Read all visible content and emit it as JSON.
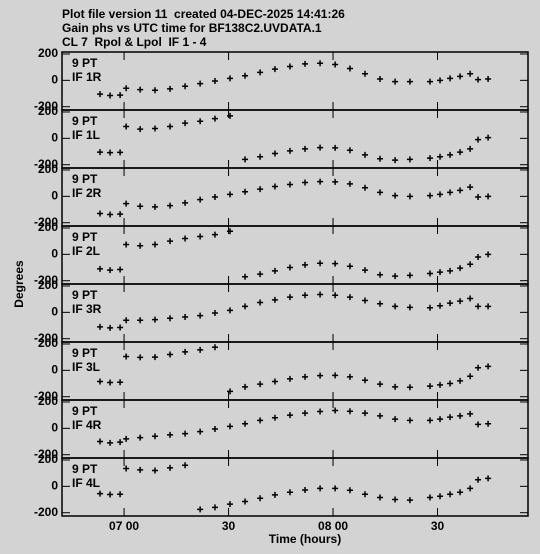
{
  "chart_data": {
    "type": "scatter",
    "title": "Plot file version 11  created 04-DEC-2025 14:41:26",
    "subtitle": "Gain phs vs UTC time for BF138C2.UVDATA.1",
    "subtitle2": "CL 7  Rpol & Lpol  IF 1 - 4",
    "y_label": "Degrees",
    "x_label": "Time (hours)",
    "panel_note": "9 PT",
    "xlim": [
      6.703,
      8.933
    ],
    "xticks": [
      {
        "value": 7.0,
        "label": "07 00"
      },
      {
        "value": 7.5,
        "label": "30"
      },
      {
        "value": 8.0,
        "label": "08 00"
      },
      {
        "value": 8.5,
        "label": "30"
      }
    ],
    "ylim": [
      -225,
      215
    ],
    "yticks": [
      -200,
      0,
      200
    ],
    "color": "#000000",
    "x": [
      6.885,
      6.933,
      6.981,
      7.01,
      7.077,
      7.148,
      7.22,
      7.292,
      7.364,
      7.435,
      7.507,
      7.579,
      7.651,
      7.722,
      7.794,
      7.866,
      7.938,
      8.01,
      8.081,
      8.153,
      8.225,
      8.297,
      8.368,
      8.464,
      8.512,
      8.56,
      8.608,
      8.656,
      8.694,
      8.742
    ],
    "series": [
      {
        "name": "IF 1R",
        "values": [
          -105,
          -115,
          -112,
          -60,
          -70,
          -75,
          -65,
          -45,
          -25,
          -5,
          15,
          35,
          60,
          85,
          105,
          125,
          130,
          120,
          90,
          50,
          10,
          -10,
          -10,
          -10,
          0,
          15,
          30,
          50,
          5,
          10
        ]
      },
      {
        "name": "IF 1L",
        "values": [
          -105,
          -108,
          -106,
          90,
          70,
          75,
          90,
          115,
          130,
          150,
          170,
          -160,
          -140,
          -115,
          -95,
          -80,
          -70,
          -72,
          -90,
          -125,
          -155,
          -165,
          -160,
          -150,
          -140,
          -125,
          -105,
          -80,
          -10,
          5
        ]
      },
      {
        "name": "IF 2R",
        "values": [
          -130,
          -138,
          -135,
          -55,
          -75,
          -80,
          -70,
          -50,
          -25,
          -5,
          15,
          35,
          55,
          75,
          90,
          105,
          112,
          110,
          95,
          65,
          30,
          5,
          0,
          5,
          15,
          30,
          45,
          70,
          -5,
          0
        ]
      },
      {
        "name": "IF 2L",
        "values": [
          -110,
          -120,
          -115,
          75,
          65,
          75,
          100,
          120,
          135,
          150,
          175,
          -170,
          -150,
          -125,
          -100,
          -80,
          -68,
          -70,
          -90,
          -120,
          -155,
          -165,
          -160,
          -145,
          -135,
          -125,
          -105,
          -75,
          -20,
          0
        ]
      },
      {
        "name": "IF 3R",
        "values": [
          -110,
          -118,
          -115,
          -60,
          -60,
          -55,
          -45,
          -35,
          -25,
          -5,
          15,
          45,
          75,
          95,
          115,
          130,
          135,
          130,
          115,
          90,
          65,
          45,
          38,
          35,
          50,
          70,
          85,
          105,
          45,
          45
        ]
      },
      {
        "name": "IF 3L",
        "values": [
          -85,
          -92,
          -90,
          105,
          98,
          100,
          120,
          140,
          155,
          175,
          -160,
          -125,
          -105,
          -85,
          -65,
          -50,
          -40,
          -38,
          -50,
          -75,
          -105,
          -125,
          -128,
          -120,
          -110,
          -100,
          -80,
          -45,
          20,
          30
        ]
      },
      {
        "name": "IF 4R",
        "values": [
          -100,
          -110,
          -105,
          -80,
          -70,
          -60,
          -50,
          -40,
          -25,
          -5,
          15,
          35,
          60,
          80,
          100,
          115,
          128,
          135,
          130,
          115,
          95,
          70,
          60,
          60,
          70,
          85,
          95,
          110,
          30,
          35
        ]
      },
      {
        "name": "IF 4L",
        "values": [
          -55,
          -62,
          -60,
          135,
          125,
          120,
          140,
          160,
          -175,
          -160,
          -135,
          -115,
          -90,
          -65,
          -45,
          -28,
          -15,
          -15,
          -30,
          -60,
          -85,
          -100,
          -105,
          -85,
          -75,
          -60,
          -45,
          -15,
          50,
          60
        ]
      }
    ]
  }
}
